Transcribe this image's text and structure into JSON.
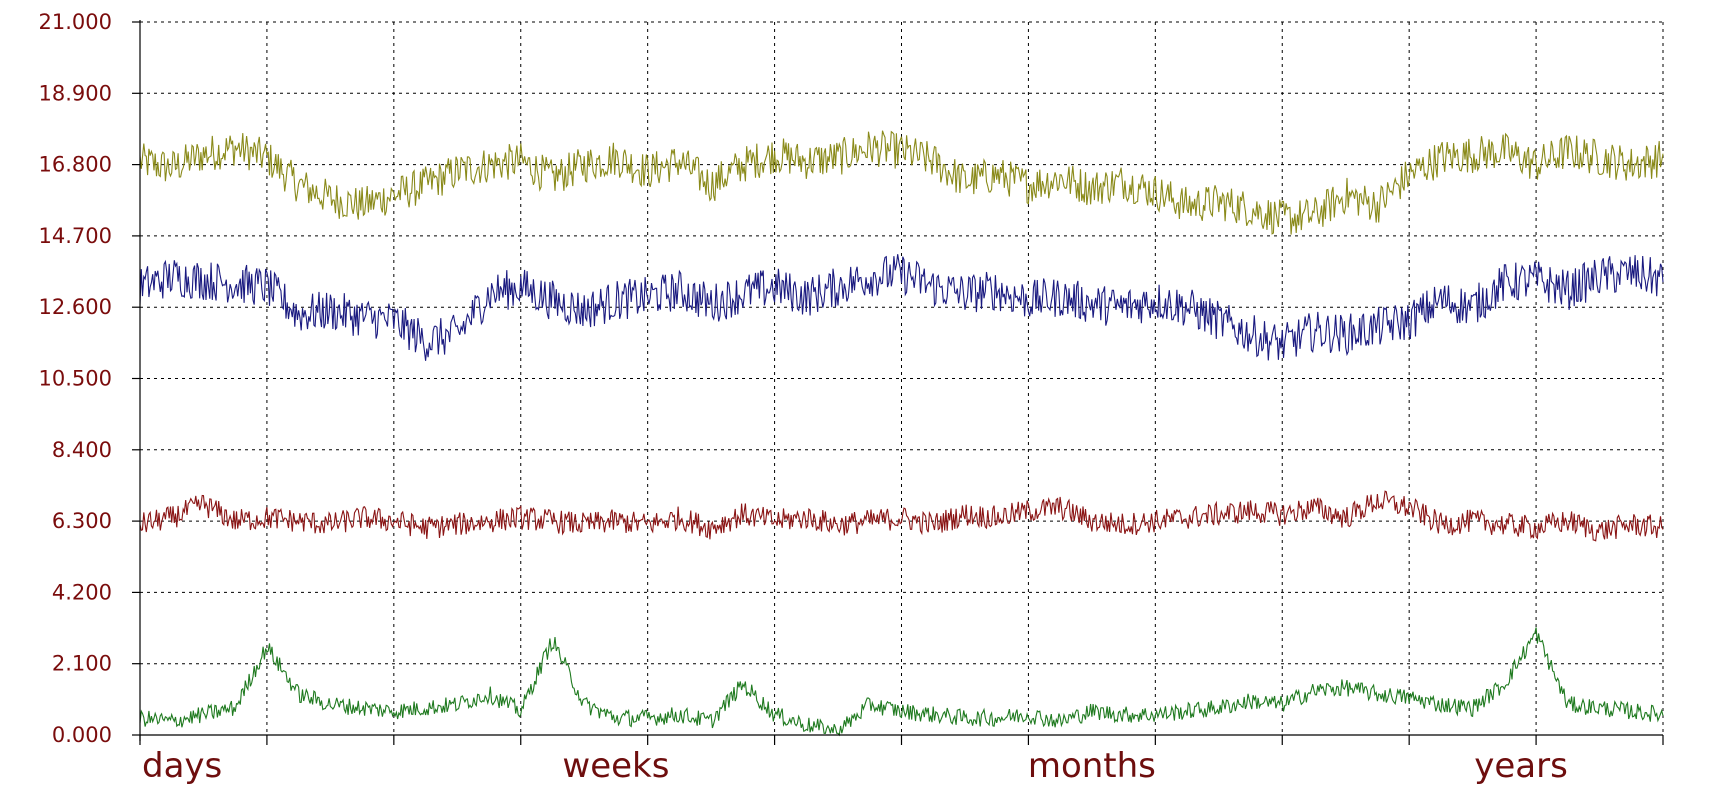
{
  "chart_data": {
    "type": "line",
    "title": "",
    "xlabel": "",
    "ylabel": "",
    "ylim": [
      0,
      21
    ],
    "y_ticks": [
      "0.000",
      "2.100",
      "4.200",
      "6.300",
      "8.400",
      "10.500",
      "12.600",
      "14.700",
      "16.800",
      "18.900",
      "21.000"
    ],
    "x_tick_labels": [
      "days",
      "weeks",
      "months",
      "years"
    ],
    "x_tick_label_positions": [
      0,
      3.75,
      7.5,
      11.25
    ],
    "x_range": [
      0,
      12
    ],
    "vertical_grid_count": 12,
    "grid": true,
    "legend": "none",
    "series": [
      {
        "color": "#8a8a1a",
        "x": [
          0,
          0.25,
          0.5,
          0.75,
          1,
          1.25,
          1.5,
          1.75,
          2,
          2.25,
          2.5,
          2.75,
          3,
          3.25,
          3.5,
          3.75,
          4,
          4.25,
          4.5,
          4.75,
          5,
          5.25,
          5.5,
          5.75,
          6,
          6.25,
          6.5,
          6.75,
          7,
          7.25,
          7.5,
          7.75,
          8,
          8.25,
          8.5,
          8.75,
          9,
          9.25,
          9.5,
          9.75,
          10,
          10.25,
          10.5,
          10.75,
          11,
          11.25,
          11.5,
          11.75,
          12
        ],
        "values": [
          16.9,
          16.7,
          17.1,
          17.3,
          17.0,
          16.2,
          15.8,
          15.6,
          15.9,
          16.2,
          16.6,
          16.8,
          16.9,
          16.4,
          16.8,
          17.0,
          16.6,
          16.9,
          16.2,
          16.8,
          17.1,
          16.9,
          17.0,
          17.3,
          17.2,
          16.9,
          16.3,
          16.5,
          16.2,
          16.4,
          16.1,
          16.3,
          16.0,
          15.6,
          15.7,
          15.5,
          15.2,
          15.3,
          15.9,
          15.6,
          16.5,
          17.0,
          17.1,
          17.2,
          16.8,
          17.2,
          17.0,
          16.8,
          17.0
        ]
      },
      {
        "color": "#1a1a80",
        "x": [
          0,
          0.25,
          0.5,
          0.75,
          1,
          1.25,
          1.5,
          1.75,
          2,
          2.25,
          2.5,
          2.75,
          3,
          3.25,
          3.5,
          3.75,
          4,
          4.25,
          4.5,
          4.75,
          5,
          5.25,
          5.5,
          5.75,
          6,
          6.25,
          6.5,
          6.75,
          7,
          7.25,
          7.5,
          7.75,
          8,
          8.25,
          8.5,
          8.75,
          9,
          9.25,
          9.5,
          9.75,
          10,
          10.25,
          10.5,
          10.75,
          11,
          11.25,
          11.5,
          11.75,
          12
        ],
        "values": [
          13.2,
          13.5,
          13.4,
          13.3,
          13.2,
          12.4,
          12.5,
          12.3,
          12.2,
          11.6,
          11.8,
          13.0,
          13.2,
          12.8,
          12.5,
          12.8,
          12.9,
          13.1,
          12.7,
          13.0,
          13.2,
          12.9,
          13.2,
          13.5,
          13.6,
          13.2,
          13.0,
          13.1,
          12.8,
          12.9,
          12.7,
          12.6,
          12.8,
          12.6,
          12.2,
          11.8,
          11.5,
          11.9,
          11.8,
          12.0,
          12.2,
          12.8,
          12.6,
          13.3,
          13.4,
          13.1,
          13.5,
          13.6,
          13.4
        ]
      },
      {
        "color": "#8a1414",
        "x": [
          0,
          0.25,
          0.5,
          0.75,
          1,
          1.25,
          1.5,
          1.75,
          2,
          2.25,
          2.5,
          2.75,
          3,
          3.25,
          3.5,
          3.75,
          4,
          4.25,
          4.5,
          4.75,
          5,
          5.25,
          5.5,
          5.75,
          6,
          6.25,
          6.5,
          6.75,
          7,
          7.25,
          7.5,
          7.75,
          8,
          8.25,
          8.5,
          8.75,
          9,
          9.25,
          9.5,
          9.75,
          10,
          10.25,
          10.5,
          10.75,
          11,
          11.25,
          11.5,
          11.75,
          12
        ],
        "values": [
          6.2,
          6.4,
          6.8,
          6.3,
          6.4,
          6.3,
          6.2,
          6.4,
          6.3,
          6.1,
          6.2,
          6.3,
          6.4,
          6.3,
          6.2,
          6.3,
          6.2,
          6.4,
          6.1,
          6.5,
          6.3,
          6.4,
          6.2,
          6.3,
          6.4,
          6.2,
          6.5,
          6.4,
          6.6,
          6.7,
          6.3,
          6.2,
          6.3,
          6.4,
          6.5,
          6.6,
          6.5,
          6.7,
          6.4,
          6.9,
          6.7,
          6.2,
          6.3,
          6.2,
          6.1,
          6.3,
          6.0,
          6.2,
          6.1
        ]
      },
      {
        "color": "#1f7a1f",
        "x": [
          0,
          0.25,
          0.5,
          0.75,
          1,
          1.25,
          1.5,
          1.75,
          2,
          2.25,
          2.5,
          2.75,
          3,
          3.25,
          3.5,
          3.75,
          4,
          4.25,
          4.5,
          4.75,
          5,
          5.25,
          5.5,
          5.75,
          6,
          6.25,
          6.5,
          6.75,
          7,
          7.25,
          7.5,
          7.75,
          8,
          8.25,
          8.5,
          8.75,
          9,
          9.25,
          9.5,
          9.75,
          10,
          10.25,
          10.5,
          10.75,
          11,
          11.25,
          11.5,
          11.75,
          12
        ],
        "values": [
          0.5,
          0.4,
          0.6,
          0.8,
          2.6,
          1.2,
          0.9,
          0.8,
          0.7,
          0.8,
          0.9,
          1.2,
          0.7,
          2.8,
          0.9,
          0.5,
          0.5,
          0.6,
          0.4,
          1.5,
          0.6,
          0.3,
          0.1,
          0.9,
          0.7,
          0.6,
          0.5,
          0.5,
          0.6,
          0.4,
          0.7,
          0.6,
          0.6,
          0.7,
          0.8,
          1.0,
          0.9,
          1.3,
          1.4,
          1.2,
          1.1,
          0.9,
          0.8,
          1.5,
          3.0,
          0.9,
          0.8,
          0.7,
          0.6
        ]
      }
    ],
    "notes_spikes": []
  }
}
